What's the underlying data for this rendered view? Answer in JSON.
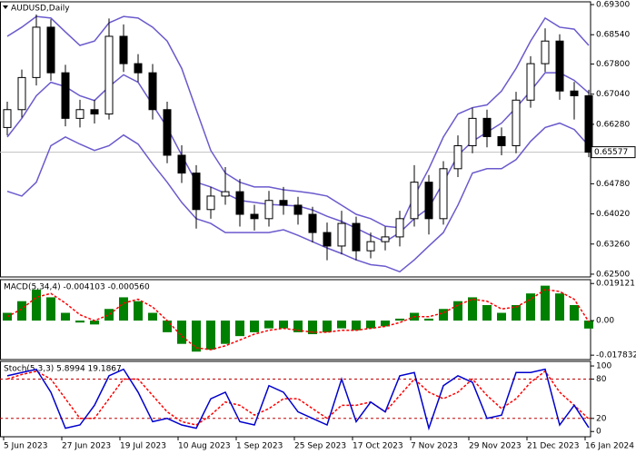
{
  "chart_data": [
    {
      "type": "candlestick",
      "title": "AUDUSD,Daily",
      "open": [
        0.662,
        0.6665,
        0.6746,
        0.6873,
        0.6758,
        0.6643,
        0.6665,
        0.6654,
        0.685,
        0.6781,
        0.6758,
        0.6665,
        0.655,
        0.6505,
        0.6413,
        0.6447,
        0.6458,
        0.6401,
        0.639,
        0.6436,
        0.6424,
        0.6401,
        0.6355,
        0.6321,
        0.6378,
        0.6309,
        0.6332,
        0.6344,
        0.639,
        0.6482,
        0.639,
        0.6516,
        0.6574,
        0.6643,
        0.6597,
        0.6574,
        0.6689,
        0.6781,
        0.6838,
        0.6712,
        0.67
      ],
      "high": [
        0.6685,
        0.6766,
        0.6905,
        0.6893,
        0.6778,
        0.669,
        0.669,
        0.6895,
        0.688,
        0.6805,
        0.678,
        0.6685,
        0.6575,
        0.6525,
        0.647,
        0.652,
        0.649,
        0.6425,
        0.646,
        0.647,
        0.6445,
        0.642,
        0.638,
        0.641,
        0.6395,
        0.6355,
        0.637,
        0.641,
        0.6525,
        0.65,
        0.6535,
        0.66,
        0.667,
        0.6665,
        0.662,
        0.671,
        0.68,
        0.687,
        0.6855,
        0.6735,
        0.6715
      ],
      "low": [
        0.66,
        0.6645,
        0.6726,
        0.6738,
        0.6623,
        0.662,
        0.663,
        0.664,
        0.676,
        0.6735,
        0.664,
        0.653,
        0.648,
        0.6365,
        0.639,
        0.6425,
        0.637,
        0.636,
        0.637,
        0.64,
        0.6375,
        0.633,
        0.6285,
        0.63,
        0.6285,
        0.629,
        0.631,
        0.632,
        0.637,
        0.635,
        0.6375,
        0.6495,
        0.6555,
        0.657,
        0.655,
        0.6555,
        0.667,
        0.676,
        0.669,
        0.664,
        0.6545
      ],
      "close": [
        0.6665,
        0.6746,
        0.6873,
        0.6758,
        0.6643,
        0.6665,
        0.6654,
        0.685,
        0.6781,
        0.6758,
        0.6665,
        0.655,
        0.6505,
        0.6413,
        0.6447,
        0.6458,
        0.6401,
        0.639,
        0.6436,
        0.6424,
        0.6401,
        0.6355,
        0.6321,
        0.6378,
        0.6309,
        0.6332,
        0.6344,
        0.639,
        0.6482,
        0.639,
        0.6516,
        0.6574,
        0.6643,
        0.6597,
        0.6574,
        0.6689,
        0.6781,
        0.6838,
        0.6712,
        0.67,
        0.65577
      ],
      "bands": {
        "color": "#6a5acd",
        "upper": [
          0.685,
          0.6873,
          0.69,
          0.6896,
          0.6861,
          0.6827,
          0.6838,
          0.6884,
          0.69,
          0.6896,
          0.6873,
          0.6838,
          0.6769,
          0.6665,
          0.6562,
          0.6505,
          0.6482,
          0.647,
          0.647,
          0.6463,
          0.6459,
          0.6454,
          0.6447,
          0.6424,
          0.6401,
          0.639,
          0.6371,
          0.6367,
          0.6447,
          0.6516,
          0.6596,
          0.6654,
          0.667,
          0.6677,
          0.6712,
          0.6769,
          0.6838,
          0.6896,
          0.6873,
          0.6868,
          0.6827
        ],
        "middle": [
          0.6596,
          0.6643,
          0.67,
          0.6734,
          0.6723,
          0.67,
          0.6688,
          0.6723,
          0.6753,
          0.6734,
          0.6677,
          0.662,
          0.655,
          0.6482,
          0.647,
          0.6454,
          0.6436,
          0.6431,
          0.6426,
          0.6424,
          0.6422,
          0.6412,
          0.6396,
          0.6383,
          0.6366,
          0.6348,
          0.6332,
          0.6355,
          0.639,
          0.6417,
          0.6482,
          0.655,
          0.6585,
          0.6608,
          0.6631,
          0.667,
          0.6712,
          0.6758,
          0.6758,
          0.6739,
          0.6707
        ],
        "lower": [
          0.6459,
          0.6447,
          0.6482,
          0.6574,
          0.6596,
          0.6578,
          0.6562,
          0.6574,
          0.6601,
          0.6578,
          0.6528,
          0.6482,
          0.6431,
          0.639,
          0.6378,
          0.6355,
          0.6355,
          0.6355,
          0.6355,
          0.6362,
          0.6348,
          0.6332,
          0.6316,
          0.6302,
          0.6286,
          0.6274,
          0.627,
          0.6256,
          0.6286,
          0.6321,
          0.6355,
          0.6424,
          0.6505,
          0.6516,
          0.6516,
          0.6539,
          0.6585,
          0.662,
          0.6631,
          0.6615,
          0.6574
        ]
      },
      "ylim": [
        0.6243,
        0.6937
      ],
      "yticks": [
        {
          "value": 0.693,
          "label": "0.69300"
        },
        {
          "value": 0.6854,
          "label": "0.68540"
        },
        {
          "value": 0.678,
          "label": "0.67800"
        },
        {
          "value": 0.6704,
          "label": "0.67040"
        },
        {
          "value": 0.6628,
          "label": "0.66280"
        },
        {
          "value": 0.6478,
          "label": "0.64780"
        },
        {
          "value": 0.6402,
          "label": "0.64020"
        },
        {
          "value": 0.6326,
          "label": "0.63260"
        },
        {
          "value": 0.625,
          "label": "0.62500"
        }
      ],
      "last_price": {
        "value": 0.65577,
        "label": "0.65577"
      }
    },
    {
      "type": "macd",
      "title": "MACD(5,34,4) -0.004103 -0.000560",
      "color": "#008000",
      "signal_color": "#ff0000",
      "values": [
        0.004,
        0.01,
        0.016,
        0.012,
        0.004,
        -0.001,
        -0.002,
        0.006,
        0.012,
        0.01,
        0.004,
        -0.006,
        -0.012,
        -0.016,
        -0.015,
        -0.012,
        -0.008,
        -0.006,
        -0.004,
        -0.004,
        -0.006,
        -0.007,
        -0.006,
        -0.004,
        -0.005,
        -0.004,
        -0.003,
        0.001,
        0.004,
        0.001,
        0.006,
        0.01,
        0.012,
        0.008,
        0.004,
        0.008,
        0.014,
        0.018,
        0.014,
        0.008,
        -0.004103
      ],
      "signal": [
        0.002,
        0.006,
        0.012,
        0.014,
        0.009,
        0.003,
        0.0,
        0.003,
        0.009,
        0.011,
        0.007,
        0.0,
        -0.008,
        -0.014,
        -0.015,
        -0.013,
        -0.01,
        -0.007,
        -0.005,
        -0.004,
        -0.005,
        -0.006,
        -0.006,
        -0.005,
        -0.005,
        -0.004,
        -0.003,
        -0.001,
        0.002,
        0.002,
        0.004,
        0.008,
        0.011,
        0.01,
        0.006,
        0.007,
        0.011,
        0.016,
        0.015,
        0.011,
        -0.00056
      ],
      "ylim": [
        -0.0201,
        0.0211
      ],
      "yticks": [
        0.019121,
        {
          "value": 0,
          "label": "0.00"
        },
        -0.017832
      ]
    },
    {
      "type": "stochastic",
      "title": "Stoch(5,3,3) 5.8994 19.1867",
      "color": "#0000cd",
      "signal_color": "#ff0000",
      "main": [
        85,
        90,
        95,
        60,
        5,
        10,
        40,
        85,
        95,
        60,
        15,
        20,
        10,
        5,
        50,
        60,
        15,
        10,
        70,
        60,
        30,
        20,
        10,
        80,
        15,
        45,
        30,
        85,
        90,
        5,
        70,
        85,
        75,
        20,
        25,
        90,
        90,
        95,
        10,
        40,
        5.8994
      ],
      "signal": [
        80,
        87,
        92,
        80,
        50,
        20,
        20,
        50,
        80,
        80,
        55,
        30,
        15,
        10,
        25,
        45,
        40,
        25,
        35,
        50,
        50,
        35,
        20,
        40,
        40,
        45,
        30,
        55,
        80,
        60,
        50,
        60,
        80,
        55,
        35,
        50,
        75,
        92,
        60,
        40,
        19.1867
      ],
      "ylim": [
        -8,
        107
      ],
      "yticks": [
        100,
        80,
        20,
        0
      ],
      "levels": [
        80,
        20
      ],
      "categories": [
        "5 Jun 2023",
        null,
        null,
        null,
        "27 Jun 2023",
        null,
        null,
        null,
        "19 Jul 2023",
        null,
        null,
        null,
        "10 Aug 2023",
        null,
        null,
        null,
        "1 Sep 2023",
        null,
        null,
        null,
        "25 Sep 2023",
        null,
        null,
        null,
        "17 Oct 2023",
        null,
        null,
        null,
        "7 Nov 2023",
        null,
        null,
        null,
        "29 Nov 2023",
        null,
        null,
        null,
        "21 Dec 2023",
        null,
        null,
        null,
        "16 Jan 2024"
      ]
    }
  ]
}
